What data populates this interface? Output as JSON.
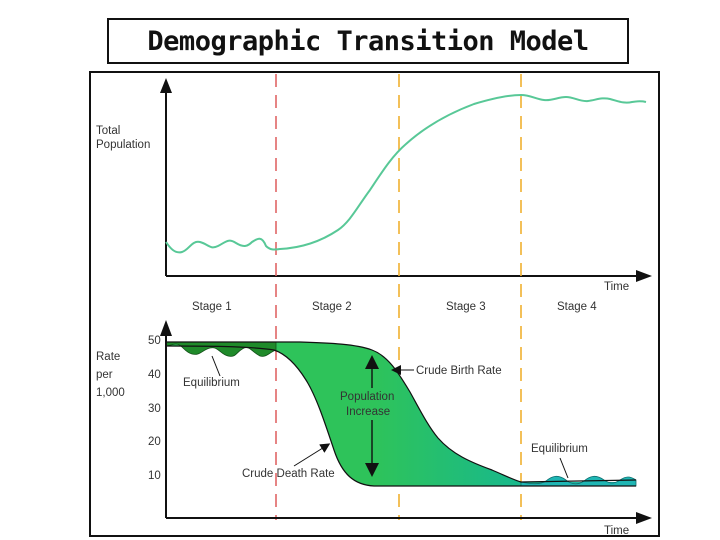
{
  "title": "Demographic Transition Model",
  "top_panel": {
    "y_label_line1": "Total",
    "y_label_line2": "Population",
    "x_label": "Time"
  },
  "stages": [
    "Stage 1",
    "Stage 2",
    "Stage 3",
    "Stage 4"
  ],
  "bottom_panel": {
    "y_label_line1": "Rate",
    "y_label_line2": "per",
    "y_label_line3": "1,000",
    "y_ticks": [
      "50",
      "40",
      "30",
      "20",
      "10"
    ],
    "x_label": "Time",
    "annotations": {
      "equilibrium_left": "Equilibrium",
      "equilibrium_right": "Equilibrium",
      "birth_rate": "Crude Birth Rate",
      "death_rate": "Crude Death Rate",
      "pop_increase_line1": "Population",
      "pop_increase_line2": "Increase"
    }
  },
  "colors": {
    "population_line": "#58c897",
    "fill_dark": "#1f8a2a",
    "fill_mid": "#2ec35a",
    "fill_teal": "#1fb6a6",
    "stage_divider_1": "#e06666",
    "stage_divider_2": "#f0b030",
    "stage_divider_3": "#f0b030"
  }
}
